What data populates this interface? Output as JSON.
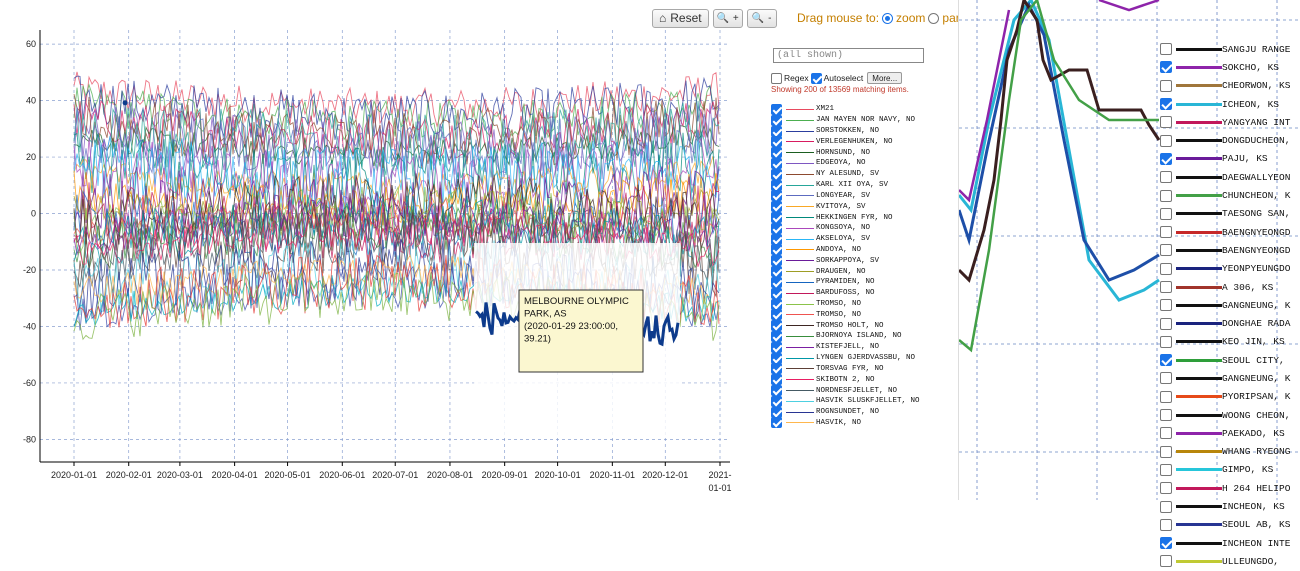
{
  "toolbar": {
    "reset_label": "Reset",
    "zoom_in_label": "+",
    "zoom_out_label": "-"
  },
  "drag_mode": {
    "prefix": "Drag mouse to:",
    "zoom_label": "zoom",
    "pan_label": "pan",
    "selected": "zoom"
  },
  "filter": {
    "value": "(all shown)"
  },
  "options": {
    "regex_label": "Regex",
    "regex_checked": false,
    "autoselect_label": "Autoselect",
    "autoselect_checked": true,
    "more_label": "More..."
  },
  "showing_text": "Showing 200 of 13569 matching items.",
  "tooltip": {
    "line1": "MELBOURNE OLYMPIC",
    "line2": "PARK, AS",
    "line3": "(2020-01-29 23:00:00,",
    "line4": "39.21)"
  },
  "legend": [
    {
      "name": "XM21",
      "color": "#e84a5f",
      "checked": true
    },
    {
      "name": "JAN MAYEN NOR NAVY, NO",
      "color": "#4caf50",
      "checked": true
    },
    {
      "name": "SORSTOKKEN, NO",
      "color": "#2c3e9e",
      "checked": true
    },
    {
      "name": "VERLEGENHUKEN, NO",
      "color": "#d81b60",
      "checked": true
    },
    {
      "name": "HORNSUND, NO",
      "color": "#1b5e20",
      "checked": true
    },
    {
      "name": "EDGEOYA, NO",
      "color": "#7e57c2",
      "checked": true
    },
    {
      "name": "NY ALESUND, SV",
      "color": "#8d4a2f",
      "checked": true
    },
    {
      "name": "KARL XII OYA, SV",
      "color": "#26a69a",
      "checked": true
    },
    {
      "name": "LONGYEAR, SV",
      "color": "#5c6bc0",
      "checked": true
    },
    {
      "name": "KVITOYA, SV",
      "color": "#f9a825",
      "checked": true
    },
    {
      "name": "HEKKINGEN FYR, NO",
      "color": "#00897b",
      "checked": true
    },
    {
      "name": "KONGSOYA, NO",
      "color": "#ab47bc",
      "checked": true
    },
    {
      "name": "AKSELOYA, SV",
      "color": "#29b6f6",
      "checked": true
    },
    {
      "name": "ANDOYA, NO",
      "color": "#ff9800",
      "checked": true
    },
    {
      "name": "SORKAPPOYA, SV",
      "color": "#6a1b9a",
      "checked": true
    },
    {
      "name": "DRAUGEN, NO",
      "color": "#9e9d24",
      "checked": true
    },
    {
      "name": "PYRAMIDEN, NO",
      "color": "#1565c0",
      "checked": true
    },
    {
      "name": "BARDUFOSS, NO",
      "color": "#c2185b",
      "checked": true
    },
    {
      "name": "TROMSO, NO",
      "color": "#8bc34a",
      "checked": true
    },
    {
      "name": "TROMSO, NO",
      "color": "#ef5350",
      "checked": true
    },
    {
      "name": "TROMSO HOLT, NO",
      "color": "#3e2723",
      "checked": true
    },
    {
      "name": "BJORNOYA ISLAND, NO",
      "color": "#388e3c",
      "checked": true
    },
    {
      "name": "KISTEFJELL, NO",
      "color": "#7b1fa2",
      "checked": true
    },
    {
      "name": "LYNGEN GJERDVASSBU, NO",
      "color": "#0097a7",
      "checked": true
    },
    {
      "name": "TORSVAG FYR, NO",
      "color": "#5d4037",
      "checked": true
    },
    {
      "name": "SKIBOTN 2, NO",
      "color": "#e91e63",
      "checked": true
    },
    {
      "name": "NORDNESFJELLET, NO",
      "color": "#455a64",
      "checked": true
    },
    {
      "name": "HASVIK SLUSKFJELLET, NO",
      "color": "#4dd0e1",
      "checked": true
    },
    {
      "name": "ROGNSUNDET, NO",
      "color": "#283593",
      "checked": true
    },
    {
      "name": "HASVIK, NO",
      "color": "#ffb74d",
      "checked": true
    }
  ],
  "zoom_legend": [
    {
      "name": "SANGJU RANGE",
      "color": "#111111",
      "checked": false
    },
    {
      "name": "SOKCHO, KS",
      "color": "#8e24aa",
      "checked": true
    },
    {
      "name": "CHEORWON, KS",
      "color": "#a0763b",
      "checked": false
    },
    {
      "name": "ICHEON, KS",
      "color": "#29b6d6",
      "checked": true
    },
    {
      "name": "YANGYANG INT",
      "color": "#c2185b",
      "checked": false
    },
    {
      "name": "DONGDUCHEON,",
      "color": "#111111",
      "checked": false
    },
    {
      "name": "PAJU, KS",
      "color": "#6a1b9a",
      "checked": true
    },
    {
      "name": "DAEGWALLYEON",
      "color": "#111111",
      "checked": false
    },
    {
      "name": "CHUNCHEON, K",
      "color": "#43a047",
      "checked": false
    },
    {
      "name": "TAESONG SAN,",
      "color": "#111111",
      "checked": false
    },
    {
      "name": "BAENGNYEONGD",
      "color": "#c62828",
      "checked": false
    },
    {
      "name": "BAENGNYEONGD",
      "color": "#111111",
      "checked": false
    },
    {
      "name": "YEONPYEUNGDO",
      "color": "#1a237e",
      "checked": false
    },
    {
      "name": "A 306, KS",
      "color": "#a1342b",
      "checked": false
    },
    {
      "name": "GANGNEUNG, K",
      "color": "#111111",
      "checked": false
    },
    {
      "name": "DONGHAE RADA",
      "color": "#1a237e",
      "checked": false
    },
    {
      "name": "KEO JIN, KS",
      "color": "#111111",
      "checked": false
    },
    {
      "name": "SEOUL CITY,",
      "color": "#2e9e3a",
      "checked": true
    },
    {
      "name": "GANGNEUNG, K",
      "color": "#111111",
      "checked": false
    },
    {
      "name": "PYORIPSAN, K",
      "color": "#e64a19",
      "checked": false
    },
    {
      "name": "WOONG CHEON,",
      "color": "#111111",
      "checked": false
    },
    {
      "name": "PAEKADO, KS",
      "color": "#8e24aa",
      "checked": false
    },
    {
      "name": "WHANG RYEONG",
      "color": "#b8860b",
      "checked": false
    },
    {
      "name": "GIMPO, KS",
      "color": "#26c6da",
      "checked": false
    },
    {
      "name": "H 264 HELIPO",
      "color": "#c2185b",
      "checked": false
    },
    {
      "name": "INCHEON, KS",
      "color": "#111111",
      "checked": false
    },
    {
      "name": "SEOUL AB, KS",
      "color": "#283593",
      "checked": false
    },
    {
      "name": "INCHEON INTE",
      "color": "#111111",
      "checked": true
    },
    {
      "name": "ULLEUNGDO,",
      "color": "#c0ca33",
      "checked": false
    }
  ],
  "chart_data": {
    "type": "line",
    "title": "",
    "xlabel": "",
    "ylabel": "",
    "x_ticks": [
      "2020-01-01",
      "2020-02-01",
      "2020-03-01",
      "2020-04-01",
      "2020-05-01",
      "2020-06-01",
      "2020-07-01",
      "2020-08-01",
      "2020-09-01",
      "2020-10-01",
      "2020-11-01",
      "2020-12-01",
      "2021-01-01"
    ],
    "y_ticks": [
      60,
      40,
      20,
      0,
      -20,
      -40,
      -60,
      -80
    ],
    "xlim": [
      "2020-01-01",
      "2021-01-01"
    ],
    "ylim": [
      -88,
      65
    ],
    "grid": true,
    "series_count_shown": 200,
    "series_total": 13569,
    "highlighted_series": {
      "name": "MELBOURNE OLYMPIC PARK, AS",
      "point": {
        "x": "2020-01-29 23:00:00",
        "y": 39.21
      }
    }
  }
}
